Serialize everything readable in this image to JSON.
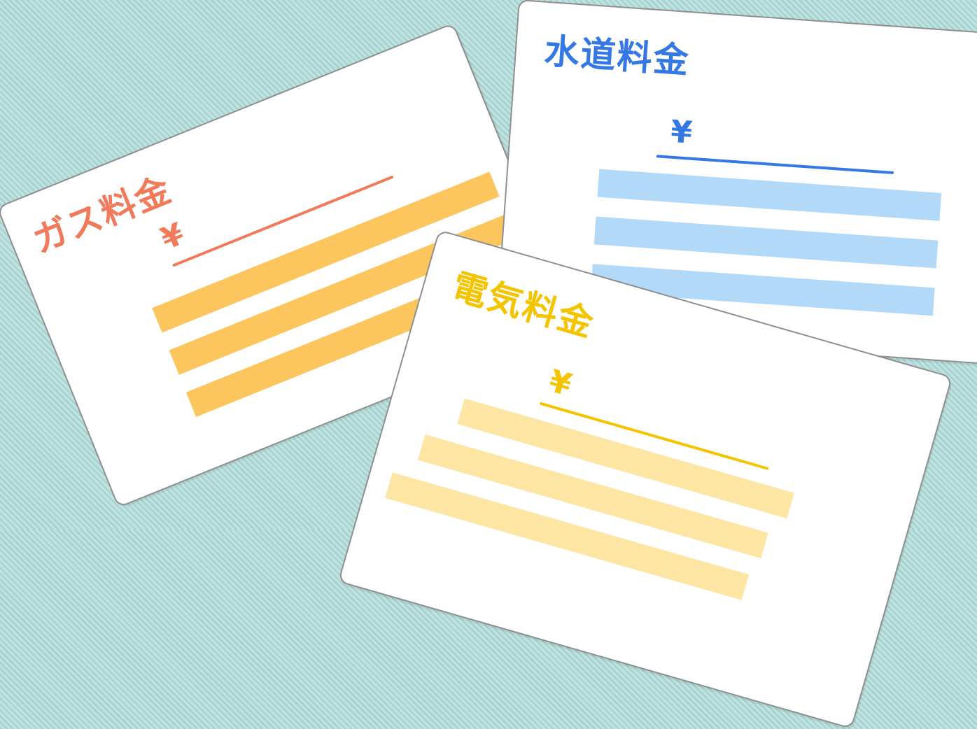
{
  "background": {
    "base_color": "#bfe2e1",
    "stripe_color": "#9fcfce",
    "pattern": "diagonal-stripes"
  },
  "bills": {
    "gas": {
      "title": "ガス料金",
      "currency": "¥",
      "title_color": "#f07a5a",
      "underline_color": "#f07a5a",
      "line_color": "#fdc55e",
      "line_count": 3
    },
    "water": {
      "title": "水道料金",
      "currency": "¥",
      "title_color": "#3478e5",
      "underline_color": "#3478e5",
      "line_color": "#b3d9f9",
      "line_count": 3
    },
    "electric": {
      "title": "電気料金",
      "currency": "¥",
      "title_color": "#f5c400",
      "underline_color": "#f5c400",
      "line_color": "#fde5a4",
      "line_count": 3
    }
  }
}
